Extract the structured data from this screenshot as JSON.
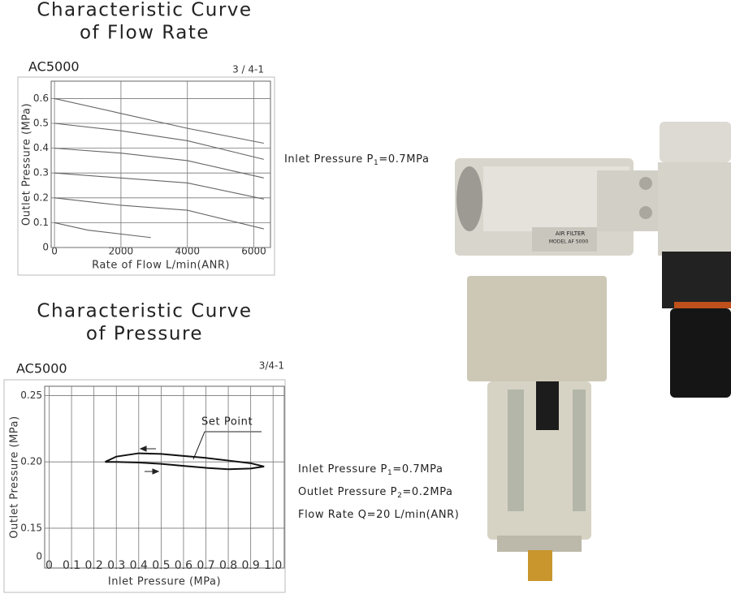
{
  "chart_data": [
    {
      "type": "line",
      "title_lines": [
        "Characteristic Curve",
        "of Flow Rate"
      ],
      "model": "AC5000",
      "code": "3 / 4-1",
      "xlabel": "Rate of Flow L/min(ANR)",
      "ylabel": "Outlet Pressure (MPa)",
      "xlim": [
        -100,
        6500
      ],
      "ylim": [
        0,
        0.67
      ],
      "xticks": [
        0,
        2000,
        4000,
        6000
      ],
      "yticks": [
        0,
        0.1,
        0.2,
        0.3,
        0.4,
        0.5,
        0.6
      ],
      "grid": true,
      "series": [
        {
          "color": "#666666",
          "x": [
            0,
            2000,
            4000,
            6300
          ],
          "values": [
            0.6,
            0.54,
            0.48,
            0.42
          ]
        },
        {
          "color": "#666666",
          "x": [
            0,
            2000,
            4000,
            6300
          ],
          "values": [
            0.5,
            0.47,
            0.43,
            0.355
          ]
        },
        {
          "color": "#666666",
          "x": [
            0,
            2000,
            4000,
            6300
          ],
          "values": [
            0.4,
            0.38,
            0.35,
            0.28
          ]
        },
        {
          "color": "#666666",
          "x": [
            0,
            2000,
            4000,
            6300
          ],
          "values": [
            0.3,
            0.28,
            0.26,
            0.195
          ]
        },
        {
          "color": "#666666",
          "x": [
            0,
            2000,
            4000,
            6300
          ],
          "values": [
            0.2,
            0.17,
            0.15,
            0.075
          ]
        },
        {
          "color": "#666666",
          "x": [
            0,
            1000,
            2900
          ],
          "values": [
            0.1,
            0.07,
            0.04
          ]
        }
      ],
      "annotations": [
        {
          "prefix": "Inlet Pressure P",
          "sub": "1",
          "suffix": "=0.7MPa"
        }
      ]
    },
    {
      "type": "line",
      "title_lines": [
        "Characteristic Curve",
        "of Pressure"
      ],
      "model": "AC5000",
      "code": "3/4-1",
      "xlabel": "Inlet Pressure (MPa)",
      "ylabel": "Outlet Pressure (MPa)",
      "y_origin_label": "0",
      "xlim": [
        -0.02,
        1.05
      ],
      "ylim": [
        0.12,
        0.257
      ],
      "xticks": [
        0,
        0.1,
        0.2,
        0.3,
        0.4,
        0.5,
        0.6,
        0.7,
        0.8,
        0.9,
        {
          "value": 1,
          "label": "1.0"
        }
      ],
      "yticks": [
        0.15,
        {
          "value": 0.2,
          "label": "0.20"
        },
        0.25
      ],
      "grid": true,
      "series": [
        {
          "color": "#111111",
          "x": [
            0.25,
            0.3,
            0.4,
            0.5,
            0.6,
            0.7,
            0.8,
            0.9,
            0.96
          ],
          "values": [
            0.2,
            0.204,
            0.2065,
            0.206,
            0.2045,
            0.203,
            0.201,
            0.199,
            0.1965
          ]
        },
        {
          "color": "#111111",
          "x": [
            0.96,
            0.9,
            0.8,
            0.7,
            0.6,
            0.5,
            0.4,
            0.3,
            0.25
          ],
          "values": [
            0.1965,
            0.195,
            0.1945,
            0.1955,
            0.197,
            0.1985,
            0.1995,
            0.2,
            0.2
          ]
        }
      ],
      "set_point_label": "Set Point",
      "annotations": [
        {
          "prefix": "Inlet Pressure P",
          "sub": "1",
          "suffix": "=0.7MPa"
        },
        {
          "prefix": "Outlet Pressure P",
          "sub": "2",
          "suffix": "=0.2MPa"
        },
        {
          "prefix": "Flow Rate Q=20 L/min(ANR)"
        }
      ]
    }
  ],
  "product": {
    "label": "AIR FILTER",
    "model": "MODEL AF 5000"
  }
}
